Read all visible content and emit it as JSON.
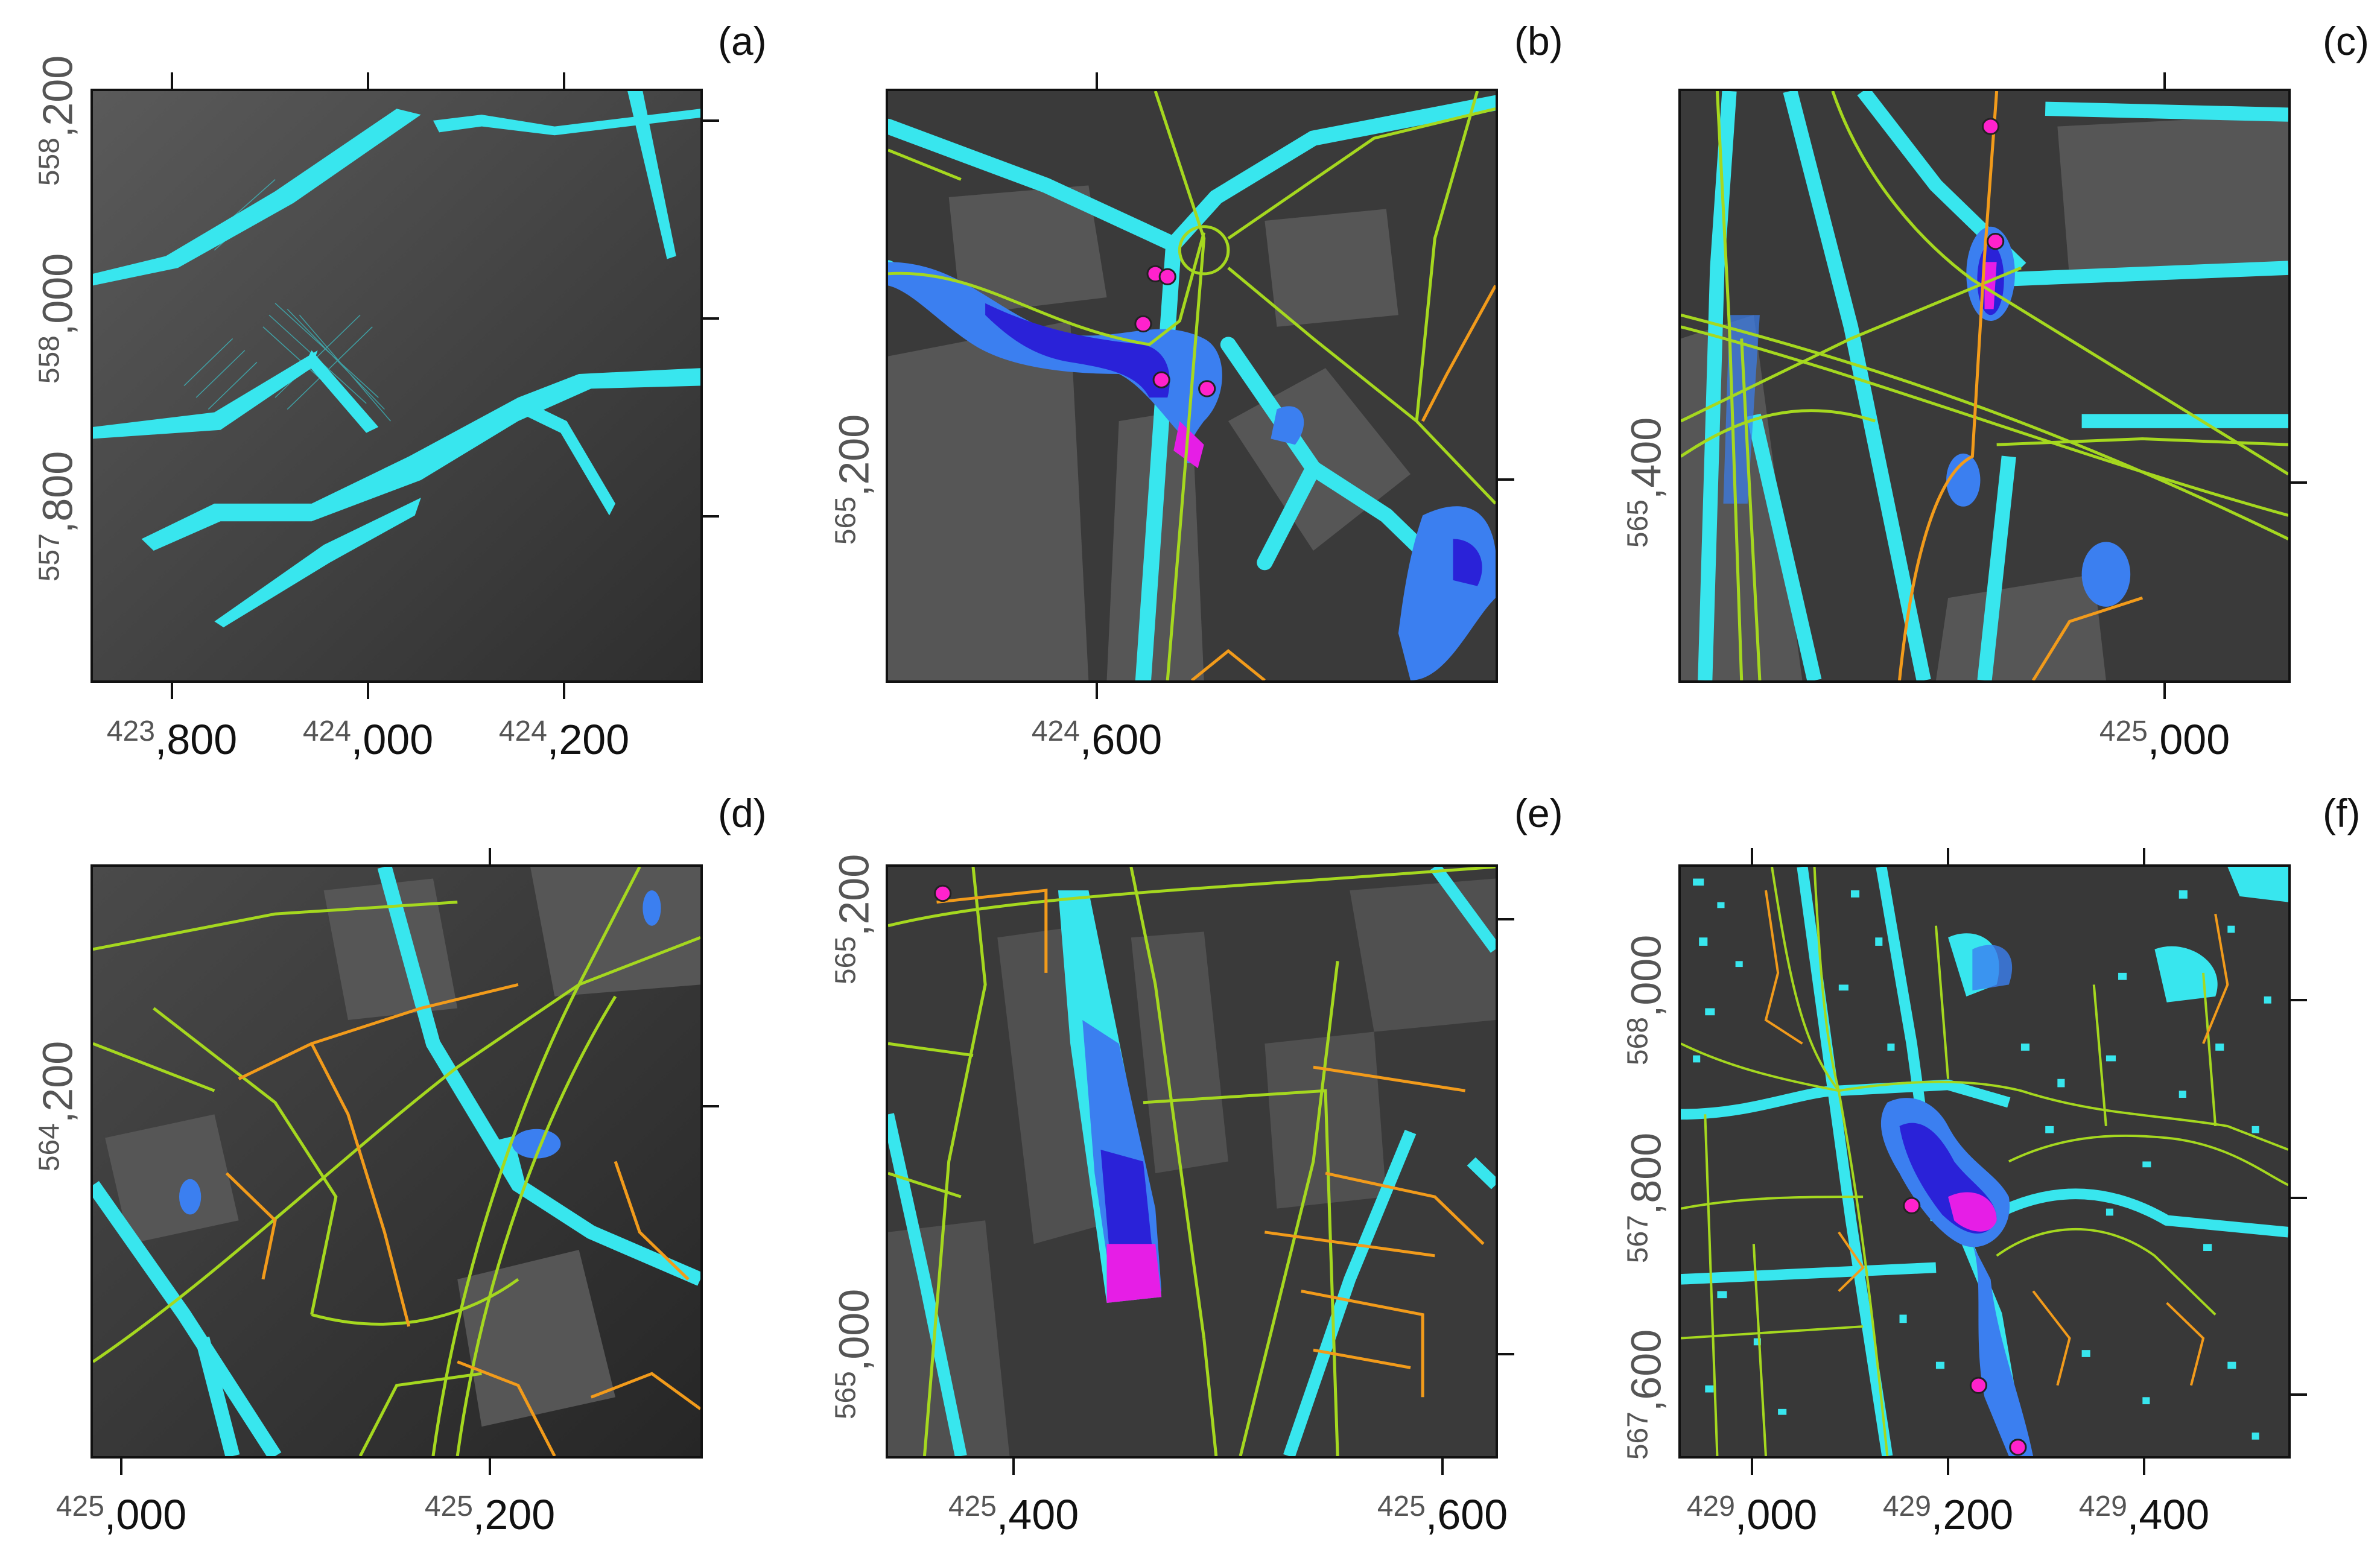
{
  "figure": {
    "panels": [
      {
        "id": "a",
        "label": "(a)",
        "x_ticks": [
          {
            "pre": "423",
            "main": ",800"
          },
          {
            "pre": "424",
            "main": ",000"
          },
          {
            "pre": "424",
            "main": ",200"
          }
        ],
        "y_ticks": [
          {
            "pre": "558",
            "main": ",200"
          },
          {
            "pre": "558",
            "main": ",000"
          },
          {
            "pre": "557",
            "main": ",800"
          }
        ]
      },
      {
        "id": "b",
        "label": "(b)",
        "x_ticks": [
          {
            "pre": "424",
            "main": ",600"
          }
        ],
        "y_ticks": [
          {
            "pre": "565",
            "main": ",200"
          }
        ]
      },
      {
        "id": "c",
        "label": "(c)",
        "x_ticks": [
          {
            "pre": "425",
            "main": ",000"
          }
        ],
        "y_ticks": [
          {
            "pre": "565",
            "main": ",400"
          }
        ]
      },
      {
        "id": "d",
        "label": "(d)",
        "x_ticks": [
          {
            "pre": "425",
            "main": ",000"
          },
          {
            "pre": "425",
            "main": ",200"
          }
        ],
        "y_ticks": [
          {
            "pre": "564",
            "main": ",200"
          }
        ]
      },
      {
        "id": "e",
        "label": "(e)",
        "x_ticks": [
          {
            "pre": "425",
            "main": ",400"
          },
          {
            "pre": "425",
            "main": ",600"
          }
        ],
        "y_ticks": [
          {
            "pre": "565",
            "main": ",200"
          },
          {
            "pre": "565",
            "main": ",000"
          }
        ]
      },
      {
        "id": "f",
        "label": "(f)",
        "x_ticks": [
          {
            "pre": "429",
            "main": ",000"
          },
          {
            "pre": "429",
            "main": ",200"
          },
          {
            "pre": "429",
            "main": ",400"
          }
        ],
        "y_ticks": [
          {
            "pre": "568",
            "main": ",000"
          },
          {
            "pre": "567",
            "main": ",800"
          },
          {
            "pre": "567",
            "main": ",600"
          }
        ]
      }
    ],
    "colors": {
      "terrain": "#3a3a3a",
      "building": "#565656",
      "shallow_water": "#38e6ee",
      "medium_water": "#3b7ff0",
      "deep_water": "#2a22d8",
      "max_water": "#e61ee6",
      "road_major": "#a5d81f",
      "road_minor": "#f29b1b",
      "marker": "#ff22cc"
    }
  }
}
